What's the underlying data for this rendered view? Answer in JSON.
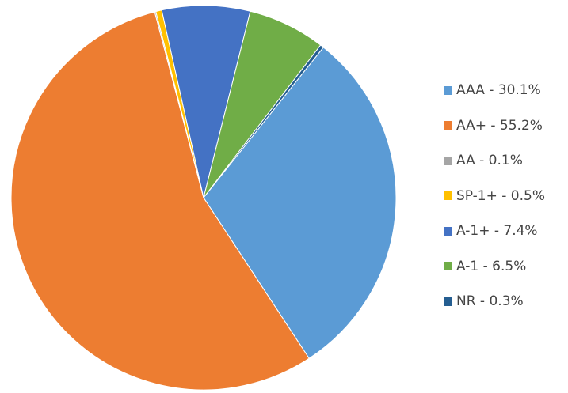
{
  "chart_data": {
    "type": "pie",
    "title": "",
    "legend_position": "right",
    "slices": [
      {
        "label": "AAA - 30.1%",
        "name": "AAA",
        "value": 30.1,
        "color": "#5B9BD5"
      },
      {
        "label": "AA+ - 55.2%",
        "name": "AA+",
        "value": 55.2,
        "color": "#ED7D31"
      },
      {
        "label": "AA - 0.1%",
        "name": "AA",
        "value": 0.1,
        "color": "#A5A5A5"
      },
      {
        "label": "SP-1+ - 0.5%",
        "name": "SP-1+",
        "value": 0.5,
        "color": "#FFC000"
      },
      {
        "label": "A-1+ - 7.4%",
        "name": "A-1+",
        "value": 7.4,
        "color": "#4472C4"
      },
      {
        "label": "A-1 - 6.5%",
        "name": "A-1",
        "value": 6.5,
        "color": "#70AD47"
      },
      {
        "label": "NR - 0.3%",
        "name": "NR",
        "value": 0.3,
        "color": "#255E91"
      }
    ]
  }
}
